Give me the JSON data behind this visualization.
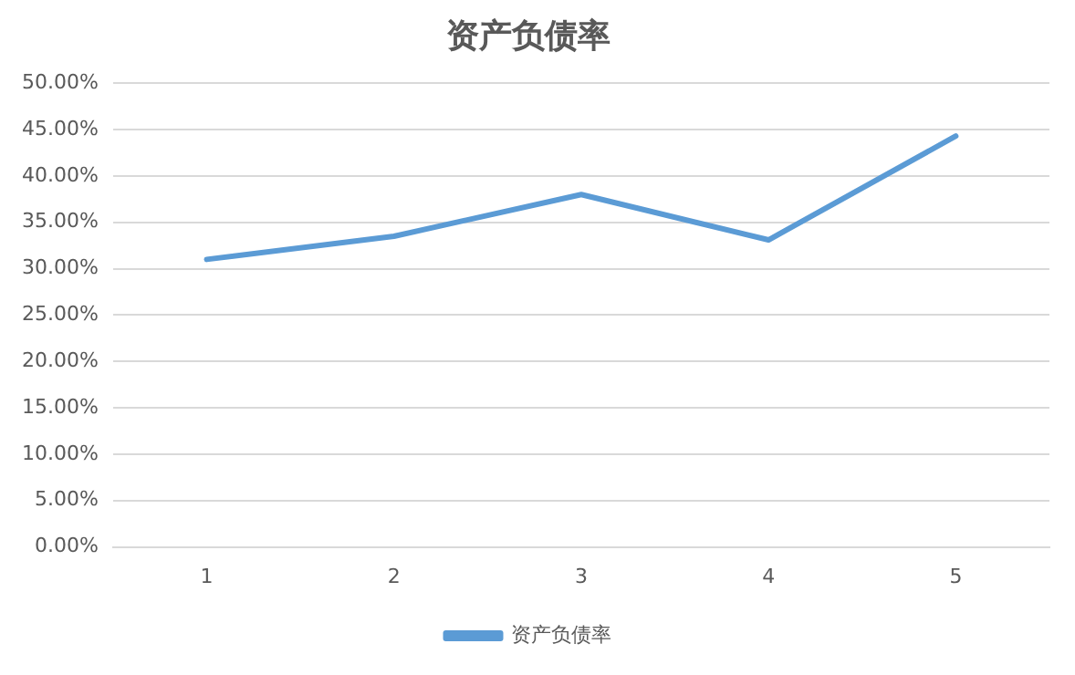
{
  "chart_data": {
    "type": "line",
    "title": "资产负债率",
    "categories": [
      "1",
      "2",
      "3",
      "4",
      "5"
    ],
    "series": [
      {
        "name": "资产负债率",
        "color": "#5b9bd5",
        "values": [
          31.0,
          33.5,
          38.0,
          33.1,
          44.3
        ]
      }
    ],
    "ylim": [
      0,
      50
    ],
    "yticks": [
      {
        "value": 0,
        "label": "0.00%"
      },
      {
        "value": 5,
        "label": "5.00%"
      },
      {
        "value": 10,
        "label": "10.00%"
      },
      {
        "value": 15,
        "label": "15.00%"
      },
      {
        "value": 20,
        "label": "20.00%"
      },
      {
        "value": 25,
        "label": "25.00%"
      },
      {
        "value": 30,
        "label": "30.00%"
      },
      {
        "value": 35,
        "label": "35.00%"
      },
      {
        "value": 40,
        "label": "40.00%"
      },
      {
        "value": 45,
        "label": "45.00%"
      },
      {
        "value": 50,
        "label": "50.00%"
      }
    ],
    "grid": "y",
    "legend": "bottom",
    "marker": "none",
    "line_style": "solid"
  }
}
